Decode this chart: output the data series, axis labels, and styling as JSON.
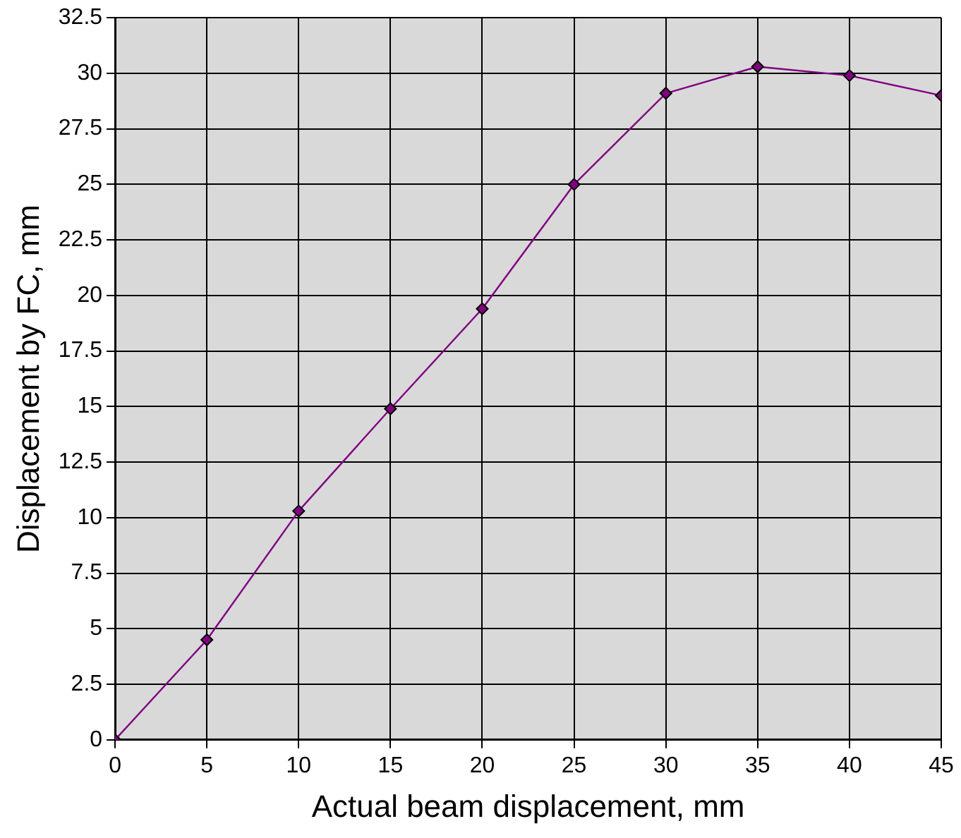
{
  "chart_data": {
    "type": "line",
    "xlabel": "Actual beam displacement, mm",
    "ylabel": "Displacement by FC, mm",
    "x": [
      0,
      5,
      10,
      15,
      20,
      25,
      30,
      35,
      40,
      45
    ],
    "series": [
      {
        "color": "#800080",
        "values": [
          0,
          4.5,
          10.3,
          14.9,
          19.4,
          25,
          29.1,
          30.3,
          29.9,
          29
        ]
      }
    ],
    "xlim": [
      0,
      45
    ],
    "xticks": [
      0,
      5,
      10,
      15,
      20,
      25,
      30,
      35,
      40,
      45
    ],
    "ylim": [
      0,
      32.5
    ],
    "yticks": [
      0,
      2.5,
      5,
      7.5,
      10,
      12.5,
      15,
      17.5,
      20,
      22.5,
      25,
      27.5,
      30,
      32.5
    ],
    "grid": true,
    "legend": false,
    "marker": "diamond",
    "line_style": "solid"
  }
}
